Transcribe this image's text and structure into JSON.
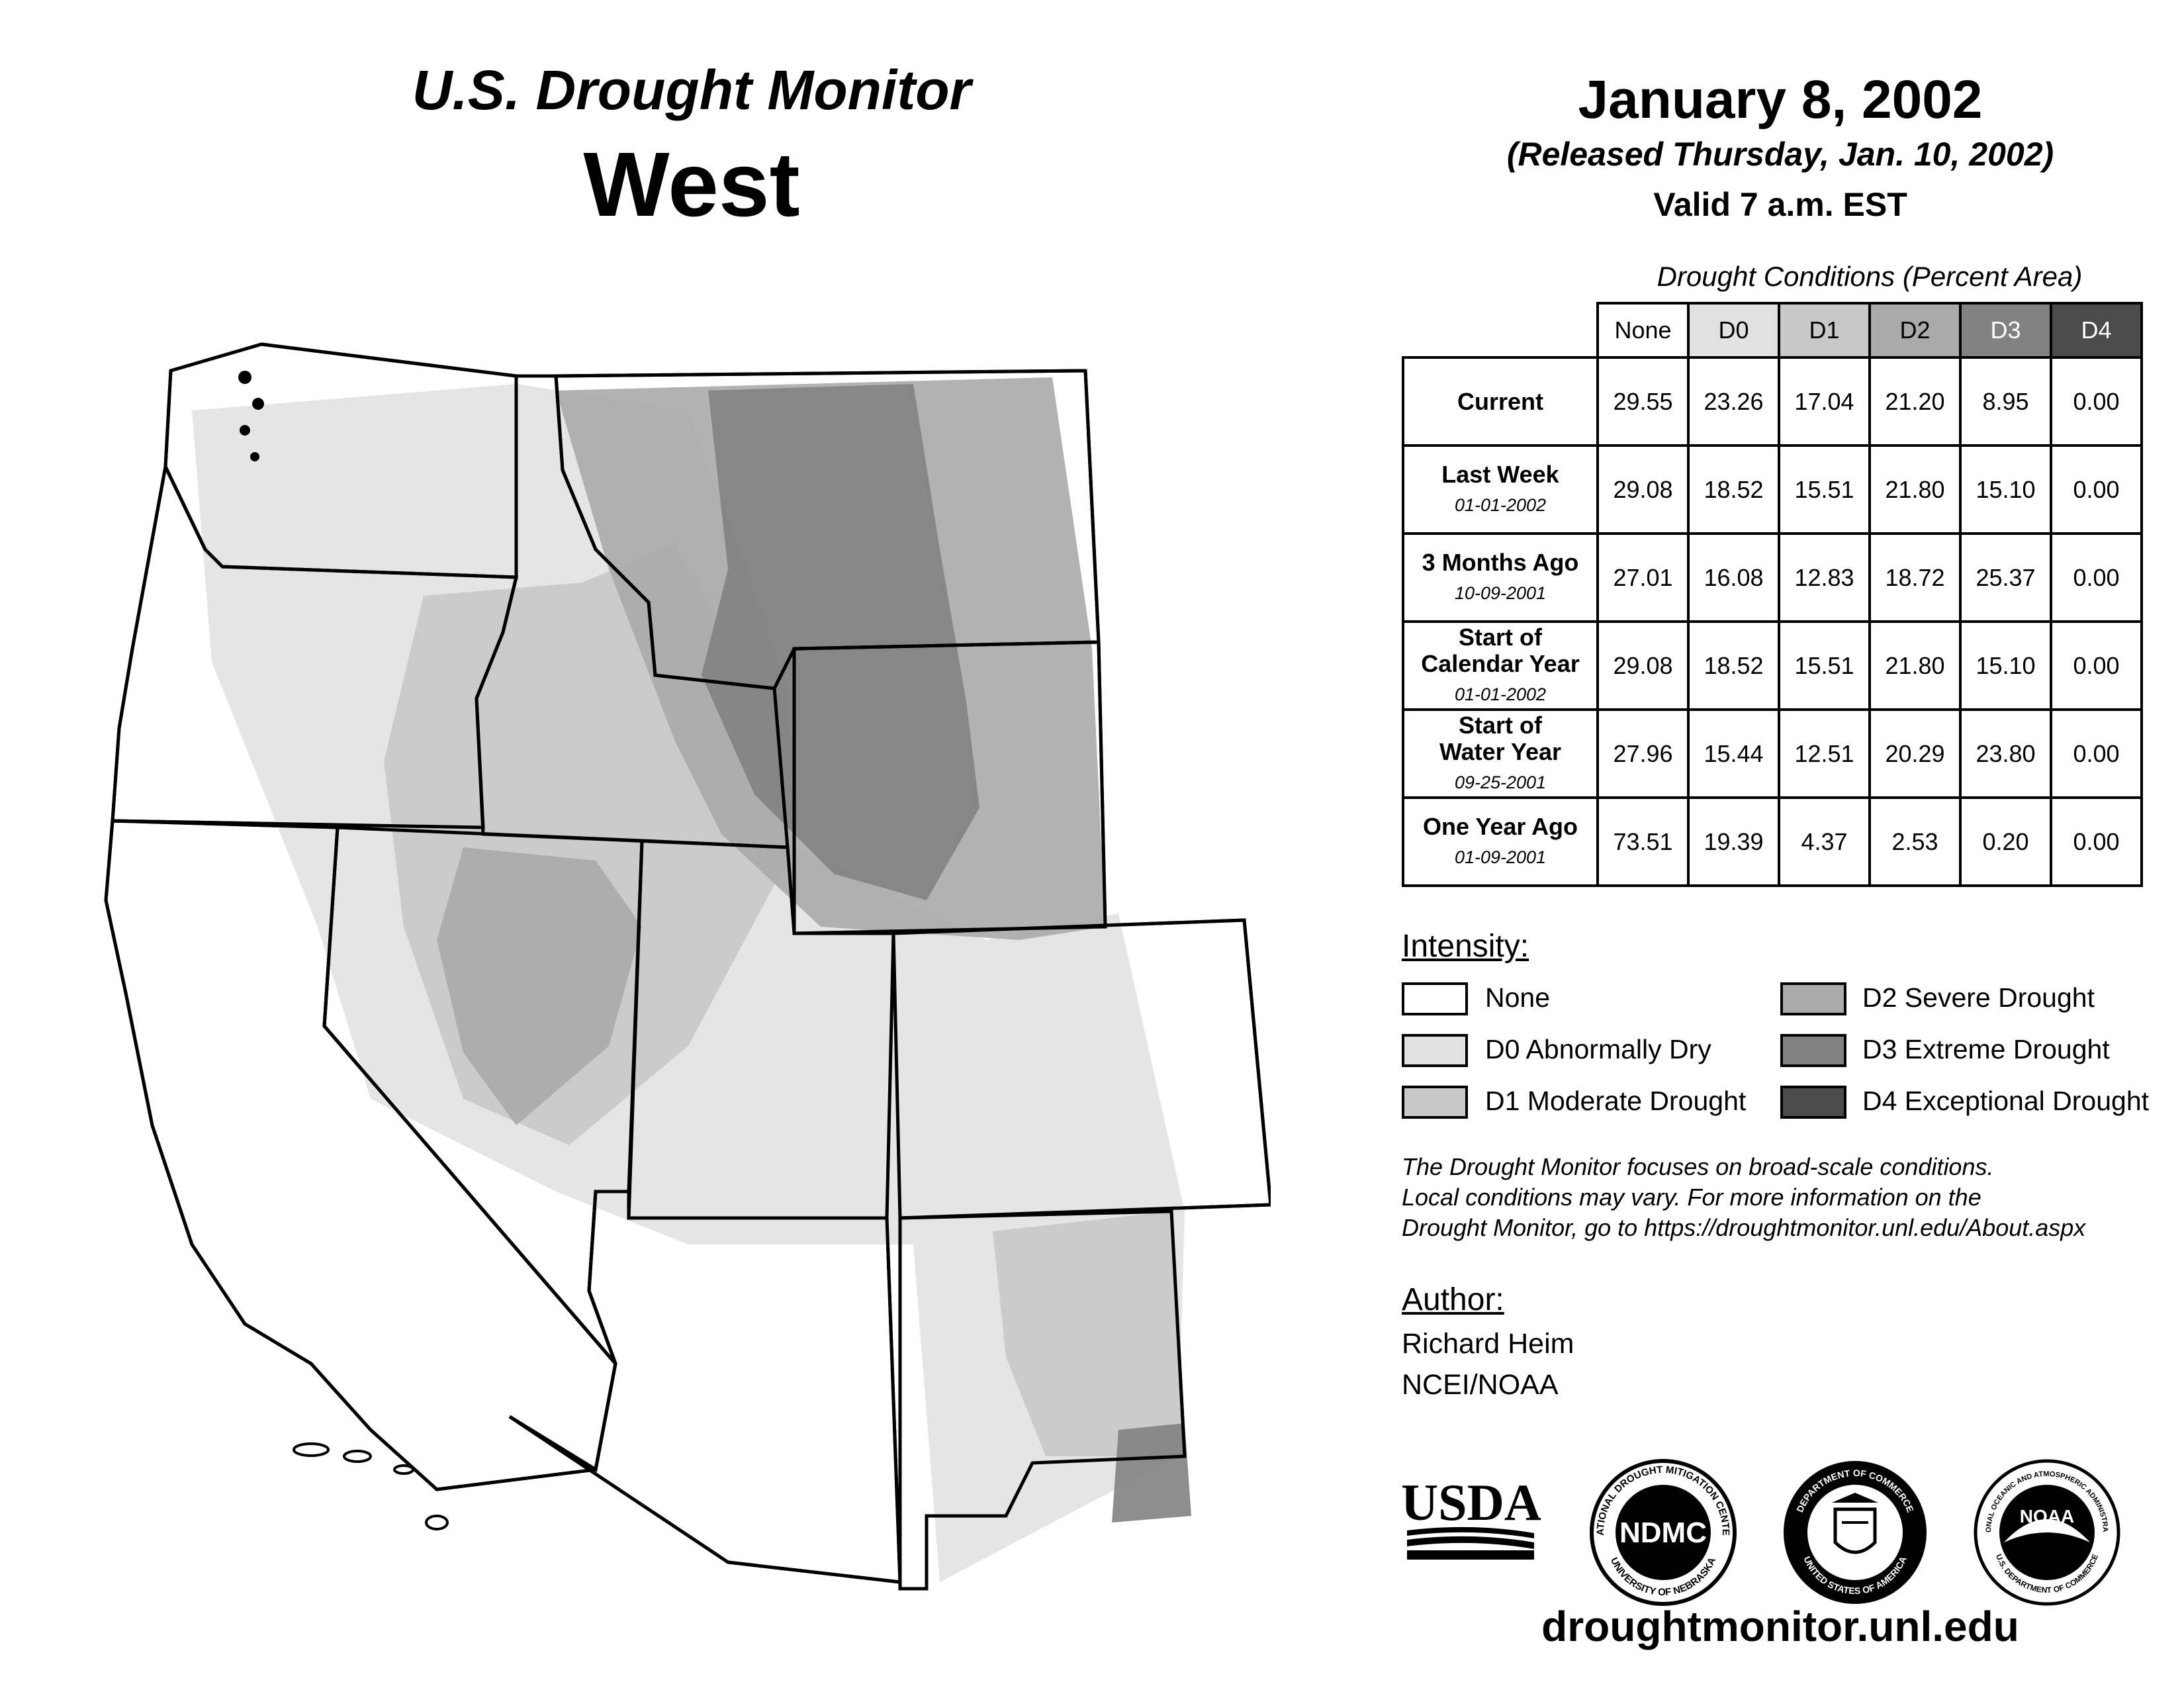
{
  "header": {
    "title": "U.S. Drought Monitor",
    "region": "West",
    "date": "January 8, 2002",
    "released": "(Released Thursday, Jan. 10, 2002)",
    "valid": "Valid 7 a.m. EST"
  },
  "table": {
    "caption": "Drought Conditions (Percent Area)",
    "columns": [
      "None",
      "D0",
      "D1",
      "D2",
      "D3",
      "D4"
    ],
    "rows": [
      {
        "label": "Current",
        "date": "",
        "values": [
          "29.55",
          "23.26",
          "17.04",
          "21.20",
          "8.95",
          "0.00"
        ]
      },
      {
        "label": "Last Week",
        "date": "01-01-2002",
        "values": [
          "29.08",
          "18.52",
          "15.51",
          "21.80",
          "15.10",
          "0.00"
        ]
      },
      {
        "label": "3 Months Ago",
        "date": "10-09-2001",
        "values": [
          "27.01",
          "16.08",
          "12.83",
          "18.72",
          "25.37",
          "0.00"
        ]
      },
      {
        "label": "Start of Calendar Year",
        "date": "01-01-2002",
        "values": [
          "29.08",
          "18.52",
          "15.51",
          "21.80",
          "15.10",
          "0.00"
        ]
      },
      {
        "label": "Start of Water Year",
        "date": "09-25-2001",
        "values": [
          "27.96",
          "15.44",
          "12.51",
          "20.29",
          "23.80",
          "0.00"
        ]
      },
      {
        "label": "One Year Ago",
        "date": "01-09-2001",
        "values": [
          "73.51",
          "19.39",
          "4.37",
          "2.53",
          "0.20",
          "0.00"
        ]
      }
    ]
  },
  "legend": {
    "title": "Intensity:",
    "items": [
      {
        "label": "None",
        "color": "#ffffff"
      },
      {
        "label": "D0 Abnormally Dry",
        "color": "#e1e1e1"
      },
      {
        "label": "D1 Moderate Drought",
        "color": "#c8c8c8"
      },
      {
        "label": "D2 Severe Drought",
        "color": "#aaaaaa"
      },
      {
        "label": "D3 Extreme Drought",
        "color": "#828282"
      },
      {
        "label": "D4 Exceptional Drought",
        "color": "#4b4b4b"
      }
    ]
  },
  "disclaimer": {
    "line1": "The Drought Monitor focuses on broad-scale conditions.",
    "line2": "Local conditions may vary. For more information on the",
    "line3": "Drought Monitor, go to https://droughtmonitor.unl.edu/About.aspx"
  },
  "author": {
    "title": "Author:",
    "name": "Richard Heim",
    "org": "NCEI/NOAA"
  },
  "logos": {
    "usda": "USDA",
    "ndmc": "NDMC",
    "ndmc_top": "NATIONAL DROUGHT MITIGATION CENTER",
    "ndmc_bottom": "UNIVERSITY OF NEBRASKA",
    "doc_top": "DEPARTMENT OF COMMERCE",
    "doc_bottom": "UNITED STATES OF AMERICA",
    "noaa": "NOAA",
    "noaa_top": "NATIONAL OCEANIC AND ATMOSPHERIC ADMINISTRATION",
    "noaa_bottom": "U.S. DEPARTMENT OF COMMERCE"
  },
  "website": "droughtmonitor.unl.edu"
}
